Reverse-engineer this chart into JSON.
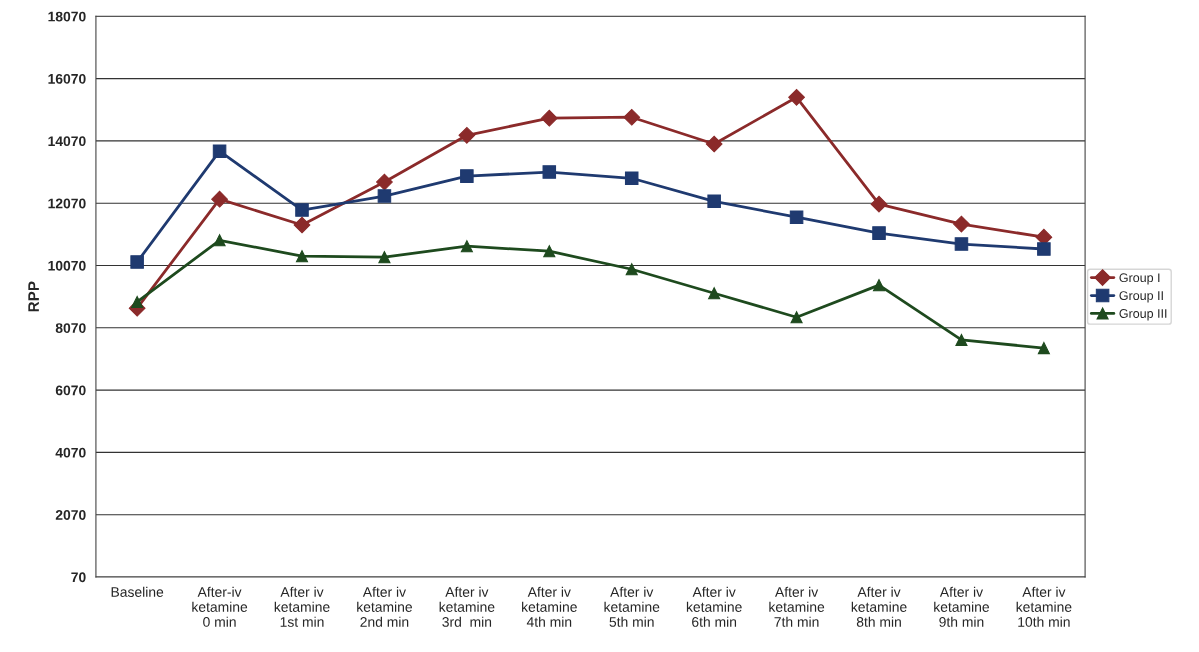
{
  "chart_data": {
    "type": "line",
    "ylabel": "RPP",
    "categories": [
      "Baseline",
      "After-iv\nketamine\n0 min",
      "After iv\nketamine\n1st min",
      "After iv\nketamine\n2nd min",
      "After iv\nketamine\n3rd  min",
      "After iv\nketamine\n4th min",
      "After iv\nketamine\n5th min",
      "After iv\nketamine\n6th min",
      "After iv\nketamine\n7th min",
      "After iv\nketamine\n8th min",
      "After iv\nketamine\n9th min",
      "After iv\nketamine\n10th min"
    ],
    "series": [
      {
        "name": "Group I",
        "color": "#8b2a2a",
        "marker": "diamond",
        "values": [
          8700,
          12200,
          11370,
          12750,
          14250,
          14800,
          14830,
          13970,
          15470,
          12040,
          11400,
          10980
        ]
      },
      {
        "name": "Group II",
        "color": "#1f3a70",
        "marker": "square",
        "values": [
          10180,
          13740,
          11850,
          12300,
          12940,
          13070,
          12870,
          12130,
          11620,
          11110,
          10760,
          10600
        ]
      },
      {
        "name": "Group III",
        "color": "#1e4a1e",
        "marker": "triangle",
        "values": [
          8900,
          10880,
          10370,
          10340,
          10690,
          10530,
          9950,
          9180,
          8410,
          9440,
          7680,
          7420
        ]
      }
    ],
    "ylim": [
      70,
      18070
    ],
    "yticks": [
      70,
      2070,
      4070,
      6070,
      8070,
      10070,
      12070,
      14070,
      16070,
      18070
    ],
    "grid": "y",
    "legend": "right"
  }
}
